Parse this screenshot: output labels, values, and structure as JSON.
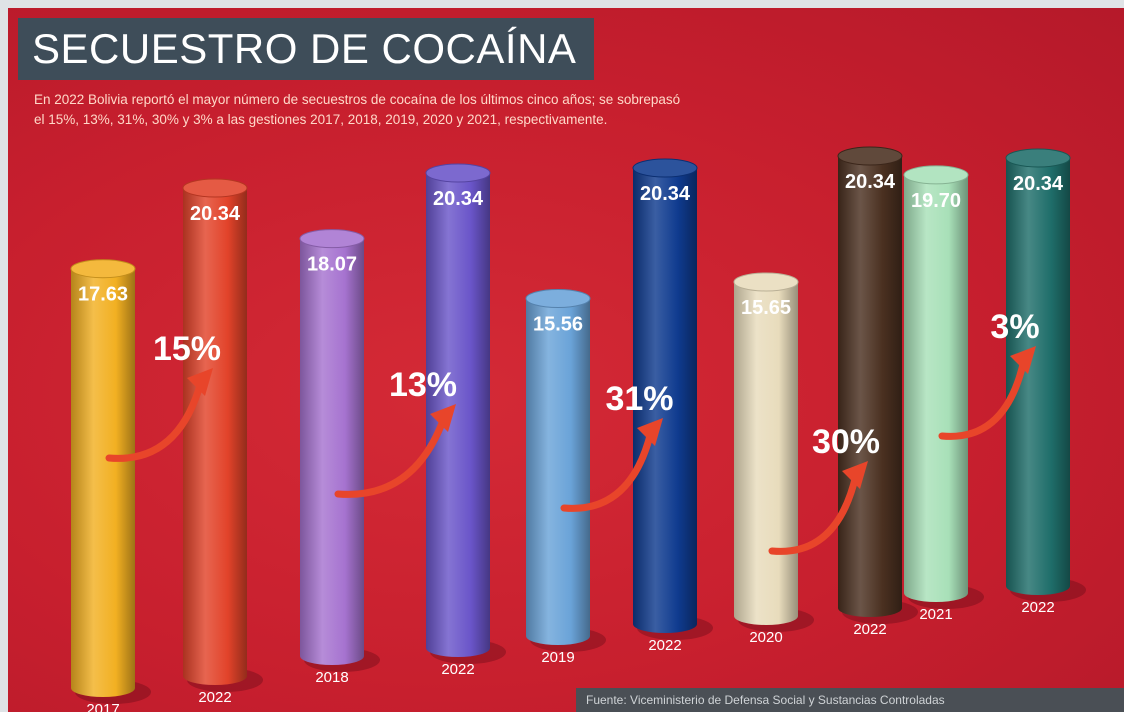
{
  "header": {
    "title": "SECUESTRO DE COCAÍNA",
    "subtitle_line1": "En 2022 Bolivia reportó el mayor número de secuestros de cocaína de los últimos cinco años; se sobrepasó",
    "subtitle_line2": "el 15%, 13%, 31%, 30% y 3% a las gestiones 2017, 2018, 2019, 2020 y 2021, respectivamente."
  },
  "source": "Fuente: Viceministerio de Defensa Social y Sustancias Controladas",
  "colors": {
    "background": "#c71f2e",
    "title_box": "#3e4d59",
    "arrow": "#e8452a"
  },
  "chart_data": {
    "type": "bar",
    "title": "SECUESTRO DE COCAÍNA",
    "groups": [
      {
        "percent": "15%",
        "bars": [
          {
            "year": "2017",
            "label": "17.63",
            "value": 17.63,
            "color": "#f2b022"
          },
          {
            "year": "2022",
            "label": "20.34",
            "value": 20.34,
            "color": "#e2432a"
          }
        ]
      },
      {
        "percent": "13%",
        "bars": [
          {
            "year": "2018",
            "label": "18.07",
            "value": 18.07,
            "color": "#a673d0"
          },
          {
            "year": "2022",
            "label": "20.34",
            "value": 20.34,
            "color": "#6a55c9"
          }
        ]
      },
      {
        "percent": "31%",
        "bars": [
          {
            "year": "2019",
            "label": "15.56",
            "value": 15.56,
            "color": "#6aa3d8"
          },
          {
            "year": "2022",
            "label": "20.34",
            "value": 20.34,
            "color": "#0f3b8f"
          }
        ]
      },
      {
        "percent": "30%",
        "bars": [
          {
            "year": "2020",
            "label": "15.65",
            "value": 15.65,
            "color": "#e8dcbc"
          },
          {
            "year": "2022",
            "label": "20.34",
            "value": 20.34,
            "color": "#4a3020"
          }
        ]
      },
      {
        "percent": "3%",
        "bars": [
          {
            "year": "2021",
            "label": "19.70",
            "value": 19.7,
            "color": "#a8e0b8"
          },
          {
            "year": "2022",
            "label": "20.34",
            "value": 20.34,
            "color": "#1f6e6a"
          }
        ]
      }
    ]
  }
}
